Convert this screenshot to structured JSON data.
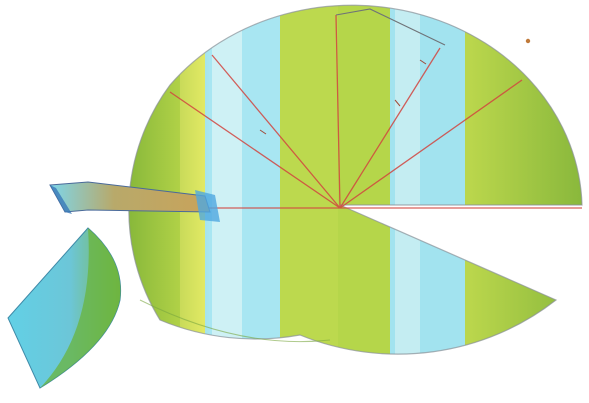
{
  "image": {
    "background": "#ffffff"
  },
  "colors": {
    "stripe_cyan": "#9fe6f0",
    "stripe_lime": "#b9d84c",
    "stripe_yellow": "#e4ea62",
    "stripe_pale": "#e6f7f6",
    "shade_dark": "#5f9e2e",
    "ray_red": "#d2453f",
    "outline": "#7b7f86",
    "lens_cyan": "#6fd4e6",
    "lens_green": "#78b84a"
  },
  "objects": [
    {
      "name": "partial-sphere",
      "kind": "wedge-cut sphere"
    },
    {
      "name": "red-rays",
      "kind": "radial lines"
    },
    {
      "name": "side-prism",
      "kind": "projecting block"
    },
    {
      "name": "detached-lens-piece",
      "kind": "lens fragment"
    }
  ]
}
